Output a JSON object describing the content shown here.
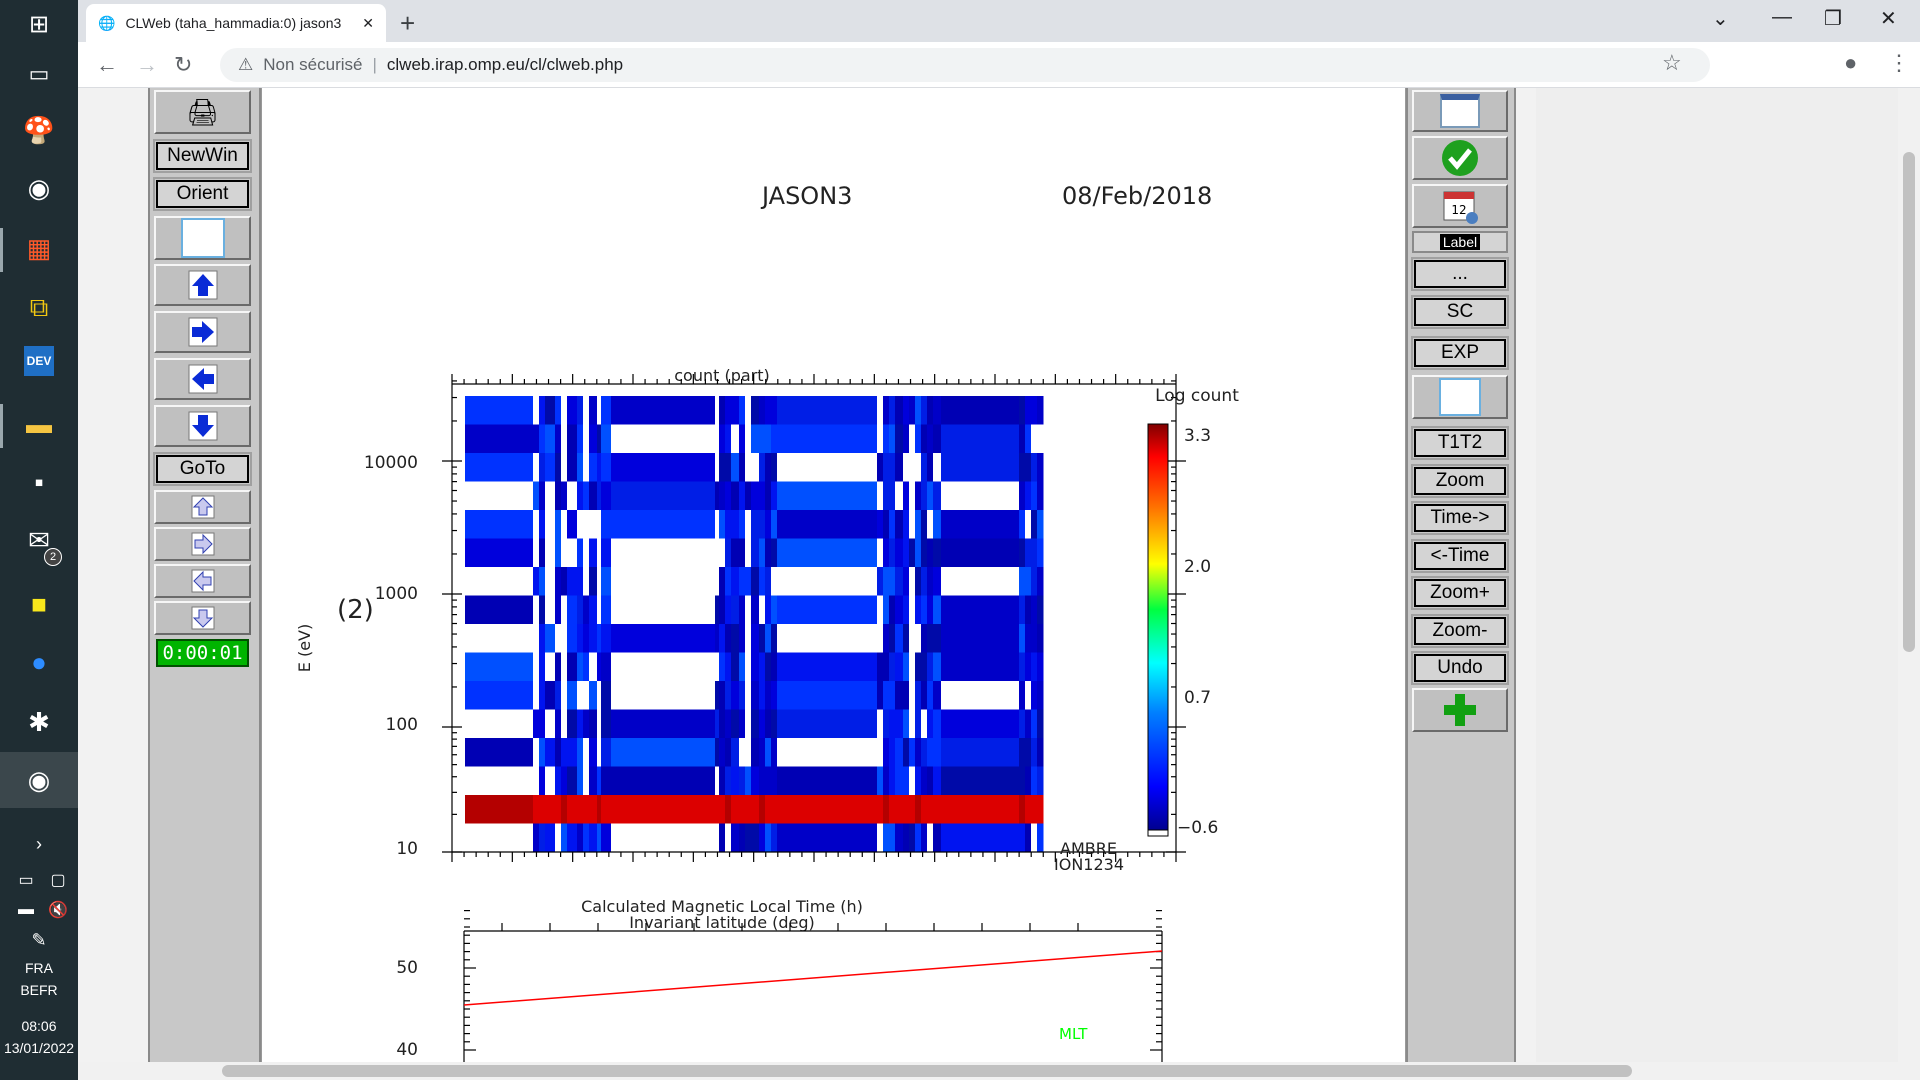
{
  "taskbar": {
    "language": "FRA",
    "layout": "BEFR",
    "time": "08:06",
    "date": "13/01/2022",
    "mail_badge": "2"
  },
  "browser": {
    "tab_title": "CLWeb (taha_hammadia:0) jason3",
    "security_label": "Non sécurisé",
    "url": "clweb.irap.omp.eu/cl/clweb.php"
  },
  "left_panel": {
    "newwin": "NewWin",
    "orient": "Orient",
    "goto": "GoTo",
    "timer": "0:00:01"
  },
  "right_panel": {
    "label": "Label",
    "dots": "...",
    "sc": "SC",
    "exp": "EXP",
    "t1t2": "T1T2",
    "zoom": "Zoom",
    "time_fwd": "Time->",
    "time_back": "<-Time",
    "zoom_plus": "Zoom+",
    "zoom_minus": "Zoom-",
    "undo": "Undo"
  },
  "plot": {
    "mission": "JASON3",
    "date": "08/Feb/2018",
    "spectrogram_title": "count (part)",
    "ylabel": "E (eV)",
    "panel_index": "(2)",
    "yticks": [
      "10000",
      "1000",
      "100",
      "10"
    ],
    "instrument": "AMBRE",
    "channel": "ION1234",
    "colorbar_title": "Log count",
    "colorbar_ticks": [
      "3.3",
      "2.0",
      "0.7",
      "−0.6"
    ],
    "line_title_1": "Calculated Magnetic Local Time (h)",
    "line_title_2": "Invariant latitude (deg)",
    "line_yticks": [
      "50",
      "40"
    ],
    "mlt_label": "MLT"
  },
  "colors": {
    "white_bins": "#ffffff",
    "band": "#d40000",
    "mlt": "#00ff00",
    "line": "#ff0000"
  },
  "chart_data": [
    {
      "type": "heatmap",
      "title": "count (part)",
      "ylabel": "E (eV)",
      "yscale": "log",
      "ylim": [
        10,
        30000
      ],
      "colorbar": {
        "label": "Log count",
        "range": [
          -0.6,
          3.3
        ],
        "ticks": [
          3.3,
          2.0,
          0.7,
          -0.6
        ]
      },
      "note": "Strong high count band near 20 eV across all times"
    },
    {
      "type": "line",
      "title": "Invariant latitude (deg)",
      "ylabel": "",
      "ylim_visible": [
        40,
        57
      ],
      "series": [
        {
          "x": [
            0,
            1
          ],
          "y": [
            46,
            52
          ]
        }
      ]
    }
  ]
}
